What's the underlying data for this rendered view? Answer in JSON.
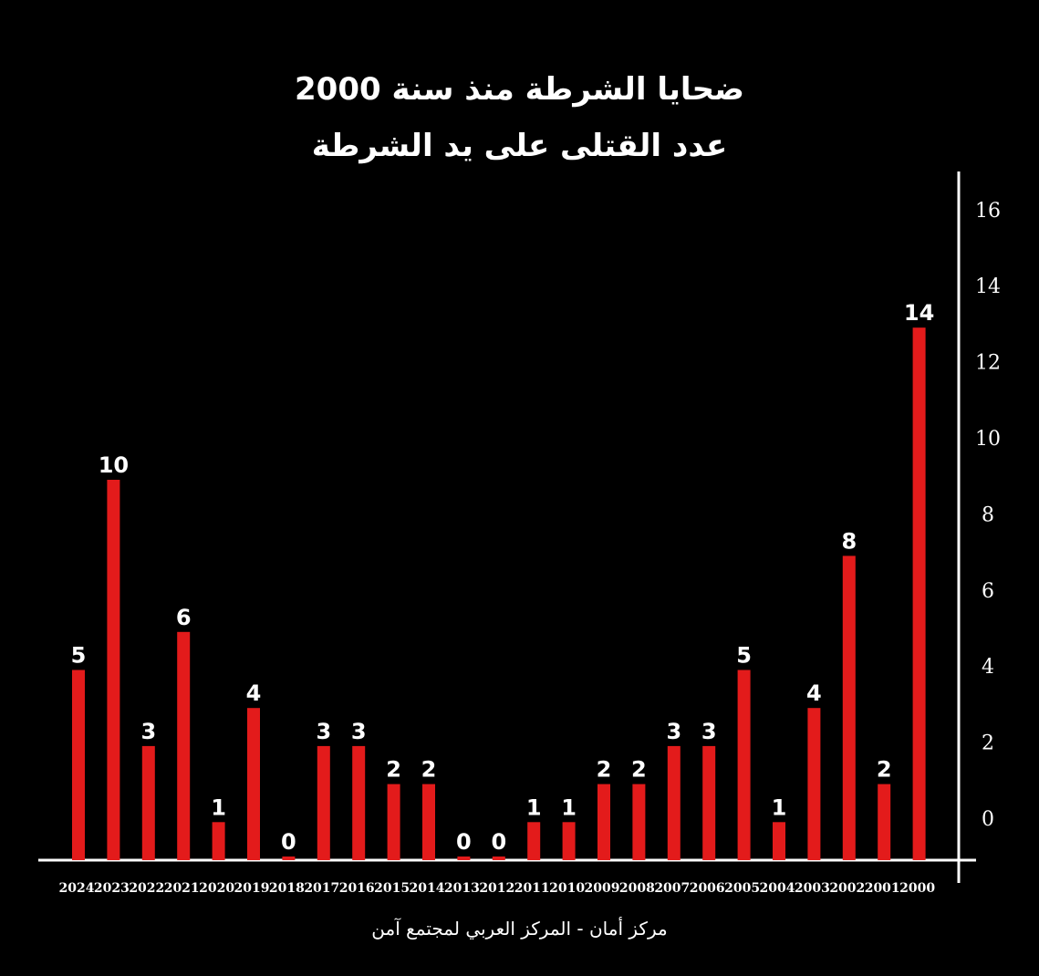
{
  "colors": {
    "background": "#000000",
    "bar": "#e31b1b",
    "text": "#ffffff"
  },
  "chart_data": {
    "type": "bar",
    "title": "ضحايا الشرطة منذ سنة 2000",
    "subtitle": "عدد القتلى على يد الشرطة",
    "xlabel": "",
    "ylabel": "",
    "categories": [
      "2024",
      "2023",
      "2022",
      "2021",
      "2020",
      "2019",
      "2018",
      "2017",
      "2016",
      "2015",
      "2014",
      "2013",
      "2012",
      "2011",
      "2010",
      "2009",
      "2008",
      "2007",
      "2006",
      "2005",
      "2004",
      "2003",
      "2002",
      "2001",
      "2000"
    ],
    "values": [
      5,
      10,
      3,
      6,
      1,
      4,
      0,
      3,
      3,
      2,
      2,
      0,
      0,
      1,
      1,
      2,
      2,
      3,
      3,
      5,
      1,
      4,
      8,
      2,
      14
    ],
    "y_ticks": [
      0,
      2,
      4,
      6,
      8,
      10,
      12,
      14,
      16
    ],
    "ylim": [
      0,
      16
    ],
    "y_axis_side": "right",
    "grid": false,
    "legend": "none"
  },
  "source": "مركز أمان - المركز العربي لمجتمع آمن"
}
